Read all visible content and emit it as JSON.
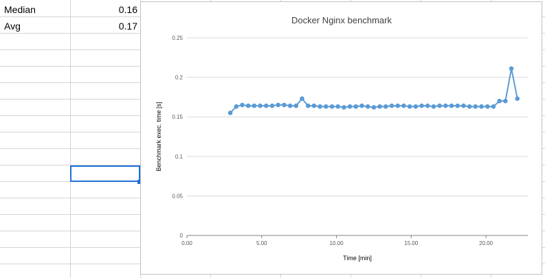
{
  "sheet": {
    "rows": [
      {
        "label": "Median",
        "value": "0.16"
      },
      {
        "label": "Avg",
        "value": "0.17"
      }
    ],
    "selected_cell": "selected"
  },
  "colors": {
    "series": "#5b9bd5",
    "selection": "#1e6fd9",
    "gridline": "#d9d9d9",
    "axis": "#808080"
  },
  "chart_data": {
    "type": "line",
    "title": "Docker Nginx benchmark",
    "xlabel": "Time [min]",
    "ylabel": "Benchmark exec. time [s]",
    "xlim": [
      0,
      22.8
    ],
    "ylim": [
      0,
      0.25
    ],
    "x_ticks": [
      "0.00",
      "5.00",
      "10.00",
      "15.00",
      "20.00"
    ],
    "x_tick_values": [
      0,
      5,
      10,
      15,
      20
    ],
    "y_ticks": [
      "0",
      "0.05",
      "0.1",
      "0.15",
      "0.2",
      "0.25"
    ],
    "y_tick_values": [
      0,
      0.05,
      0.1,
      0.15,
      0.2,
      0.25
    ],
    "gridlines": "horizontal",
    "legend": "none",
    "series": [
      {
        "x": [
          2.9,
          3.3,
          3.7,
          4.1,
          4.5,
          4.9,
          5.3,
          5.7,
          6.1,
          6.5,
          6.9,
          7.3,
          7.7,
          8.1,
          8.5,
          8.9,
          9.3,
          9.7,
          10.1,
          10.5,
          10.9,
          11.3,
          11.7,
          12.1,
          12.5,
          12.9,
          13.3,
          13.7,
          14.1,
          14.5,
          14.9,
          15.3,
          15.7,
          16.1,
          16.5,
          16.9,
          17.3,
          17.7,
          18.1,
          18.5,
          18.9,
          19.3,
          19.7,
          20.1,
          20.5,
          20.9,
          21.3,
          21.7,
          22.1
        ],
        "values": [
          0.155,
          0.163,
          0.165,
          0.164,
          0.164,
          0.164,
          0.164,
          0.164,
          0.165,
          0.165,
          0.164,
          0.164,
          0.173,
          0.164,
          0.164,
          0.163,
          0.163,
          0.163,
          0.163,
          0.162,
          0.163,
          0.163,
          0.164,
          0.163,
          0.162,
          0.163,
          0.163,
          0.164,
          0.164,
          0.164,
          0.163,
          0.163,
          0.164,
          0.164,
          0.163,
          0.164,
          0.164,
          0.164,
          0.164,
          0.164,
          0.163,
          0.163,
          0.163,
          0.163,
          0.163,
          0.17,
          0.17,
          0.211,
          0.173
        ]
      }
    ]
  }
}
